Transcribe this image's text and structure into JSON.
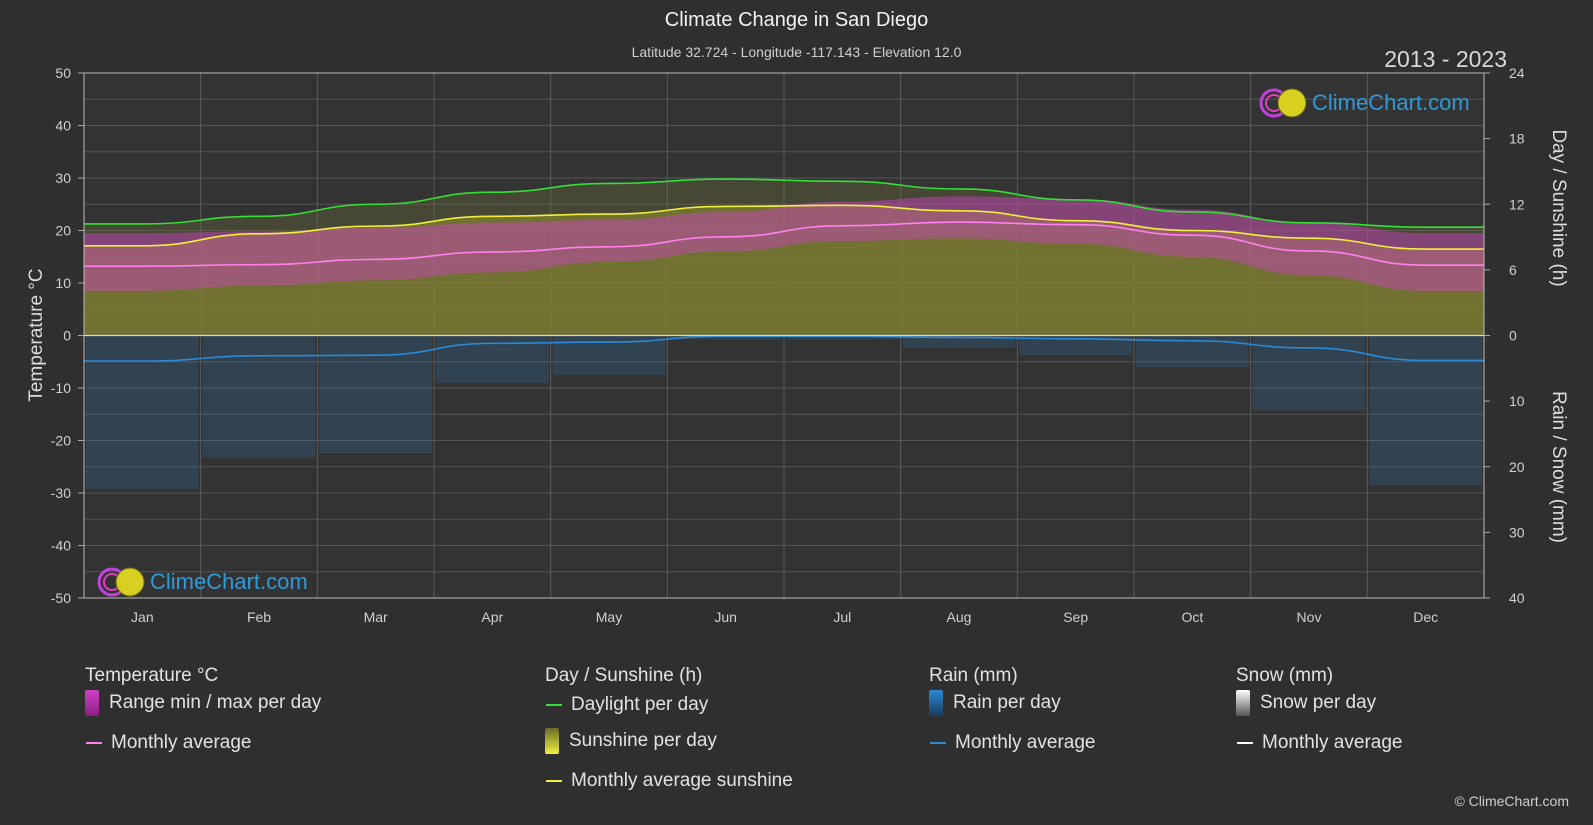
{
  "header": {
    "title": "Climate Change in San Diego",
    "subtitle": "Latitude 32.724 - Longitude -117.143 - Elevation 12.0",
    "years": "2013 - 2023"
  },
  "axes": {
    "left_title": "Temperature °C",
    "right_top_title": "Day / Sunshine (h)",
    "right_bottom_title": "Rain / Snow (mm)"
  },
  "brand": {
    "text": "ClimeChart.com"
  },
  "copyright": "© ClimeChart.com",
  "legend": {
    "temperature": {
      "title": "Temperature °C",
      "range": "Range min / max per day",
      "avg": "Monthly average"
    },
    "day": {
      "title": "Day / Sunshine (h)",
      "daylight": "Daylight per day",
      "sunshine": "Sunshine per day",
      "avg": "Monthly average sunshine"
    },
    "rain": {
      "title": "Rain (mm)",
      "per_day": "Rain per day",
      "avg": "Monthly average"
    },
    "snow": {
      "title": "Snow (mm)",
      "per_day": "Snow per day",
      "avg": "Monthly average"
    }
  },
  "colors": {
    "background": "#2f2f2f",
    "daylight": "#33e033",
    "sunshine_avg": "#f0f03a",
    "sunshine_fill": "#8a8a2c",
    "temp_range": "#d040c8",
    "temp_avg": "#ff80ee",
    "rain": "#2a8ad8",
    "snow": "#ffffff"
  },
  "chart_data": {
    "type": "area",
    "categories": [
      "Jan",
      "Feb",
      "Mar",
      "Apr",
      "May",
      "Jun",
      "Jul",
      "Aug",
      "Sep",
      "Oct",
      "Nov",
      "Dec"
    ],
    "temperature_axis": {
      "ticks": [
        "50",
        "40",
        "30",
        "20",
        "10",
        "0",
        "-10",
        "-20",
        "-30",
        "-40",
        "-50"
      ],
      "ylim": [
        -50,
        50
      ]
    },
    "sunshine_axis": {
      "ticks": [
        "24",
        "18",
        "12",
        "6",
        "0"
      ],
      "ylim": [
        0,
        24
      ]
    },
    "rain_axis": {
      "ticks": [
        "0",
        "10",
        "20",
        "30",
        "40"
      ],
      "ylim": [
        0,
        40
      ]
    },
    "grid": true,
    "series": [
      {
        "name": "Daylight per day",
        "unit": "h",
        "values": [
          10.2,
          10.9,
          12.0,
          13.1,
          13.9,
          14.3,
          14.1,
          13.4,
          12.4,
          11.3,
          10.3,
          9.9
        ]
      },
      {
        "name": "Monthly average sunshine",
        "unit": "h",
        "values": [
          8.2,
          9.3,
          10.0,
          10.9,
          11.1,
          11.8,
          11.9,
          11.4,
          10.5,
          9.6,
          8.9,
          7.9
        ]
      },
      {
        "name": "Temperature monthly average",
        "unit": "°C",
        "values": [
          13.2,
          13.5,
          14.5,
          15.9,
          16.9,
          18.8,
          20.9,
          21.6,
          21.1,
          19.1,
          16.1,
          13.4
        ]
      },
      {
        "name": "Temperature max per day",
        "unit": "°C",
        "values": [
          19.5,
          19.8,
          20.5,
          21.5,
          22.0,
          23.5,
          25.5,
          26.5,
          26.0,
          24.0,
          21.5,
          19.5
        ]
      },
      {
        "name": "Temperature min per day",
        "unit": "°C",
        "values": [
          8.5,
          9.5,
          10.5,
          12.0,
          14.0,
          16.0,
          18.0,
          18.5,
          17.5,
          15.0,
          11.5,
          8.5
        ]
      },
      {
        "name": "Rain monthly average",
        "unit": "mm",
        "values": [
          3.9,
          3.1,
          3.0,
          1.2,
          1.0,
          0.1,
          0.1,
          0.3,
          0.5,
          0.8,
          1.9,
          3.8
        ]
      }
    ]
  }
}
